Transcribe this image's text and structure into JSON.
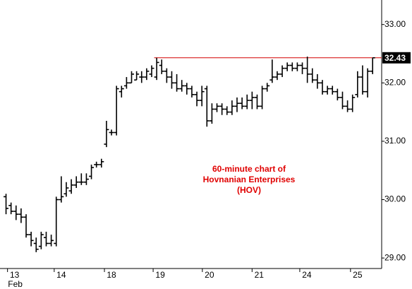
{
  "chart_data": {
    "type": "ohlc",
    "color": "#000000",
    "x": [
      0,
      1,
      2,
      3,
      4,
      5,
      6,
      7,
      8,
      9,
      10,
      11,
      12,
      13,
      14,
      15,
      16,
      17,
      18,
      19,
      20,
      21,
      22,
      23,
      24,
      25,
      26,
      27,
      28,
      29,
      30,
      31,
      32,
      33,
      34,
      35,
      36,
      37,
      38,
      39,
      40,
      41,
      42,
      43,
      44,
      45,
      46,
      47,
      48,
      49,
      50,
      51,
      52,
      53,
      54,
      55,
      56,
      57,
      58,
      59,
      60,
      61,
      62,
      63,
      64,
      65,
      66,
      67,
      68,
      69,
      70,
      71,
      72,
      73
    ],
    "open": [
      30.05,
      29.9,
      29.8,
      29.75,
      29.7,
      29.4,
      29.25,
      29.2,
      29.35,
      29.25,
      29.25,
      30.0,
      30.1,
      30.15,
      30.25,
      30.3,
      30.3,
      30.4,
      30.6,
      30.6,
      30.95,
      31.15,
      31.15,
      31.85,
      31.95,
      32.0,
      32.05,
      32.1,
      32.1,
      32.15,
      32.1,
      32.3,
      32.2,
      32.1,
      32.0,
      31.9,
      31.95,
      31.9,
      31.8,
      31.7,
      31.9,
      31.35,
      31.55,
      31.6,
      31.55,
      31.5,
      31.6,
      31.65,
      31.6,
      31.7,
      31.75,
      31.6,
      31.9,
      32.05,
      32.1,
      32.15,
      32.25,
      32.3,
      32.25,
      32.3,
      32.25,
      32.15,
      32.05,
      32.0,
      31.85,
      31.9,
      31.85,
      31.75,
      31.6,
      31.55,
      31.8,
      32.1,
      31.85,
      32.2
    ],
    "high": [
      30.1,
      29.95,
      29.9,
      29.85,
      29.75,
      29.45,
      29.35,
      29.45,
      29.45,
      29.4,
      30.05,
      30.4,
      30.3,
      30.35,
      30.4,
      30.45,
      30.45,
      30.6,
      30.65,
      30.7,
      31.35,
      31.2,
      31.95,
      31.95,
      32.1,
      32.2,
      32.2,
      32.2,
      32.25,
      32.3,
      32.43,
      32.4,
      32.25,
      32.2,
      32.15,
      32.05,
      32.0,
      31.95,
      31.85,
      31.95,
      31.95,
      31.65,
      31.65,
      31.65,
      31.6,
      31.7,
      31.75,
      31.75,
      31.8,
      31.85,
      31.8,
      31.95,
      32.0,
      32.4,
      32.2,
      32.3,
      32.35,
      32.35,
      32.35,
      32.35,
      32.45,
      32.25,
      32.15,
      32.05,
      31.95,
      31.95,
      31.9,
      31.85,
      31.7,
      31.8,
      32.2,
      32.3,
      32.25,
      32.43
    ],
    "low": [
      29.75,
      29.75,
      29.65,
      29.6,
      29.35,
      29.2,
      29.1,
      29.15,
      29.2,
      29.2,
      29.2,
      29.95,
      30.05,
      30.1,
      30.2,
      30.25,
      30.25,
      30.35,
      30.55,
      30.55,
      30.9,
      31.1,
      31.1,
      31.75,
      31.9,
      32.0,
      32.05,
      32.0,
      32.05,
      32.1,
      32.05,
      32.15,
      32.0,
      31.9,
      31.85,
      31.85,
      31.8,
      31.75,
      31.6,
      31.6,
      31.25,
      31.3,
      31.5,
      31.45,
      31.45,
      31.45,
      31.5,
      31.55,
      31.55,
      31.55,
      31.55,
      31.55,
      31.85,
      32.0,
      32.05,
      32.1,
      32.2,
      32.2,
      32.2,
      32.15,
      32.0,
      32.0,
      31.9,
      31.8,
      31.8,
      31.8,
      31.7,
      31.55,
      31.5,
      31.5,
      31.75,
      31.8,
      31.75,
      32.15
    ],
    "close": [
      29.85,
      29.8,
      29.75,
      29.7,
      29.4,
      29.3,
      29.15,
      29.4,
      29.25,
      29.3,
      30.0,
      30.05,
      30.2,
      30.25,
      30.3,
      30.3,
      30.35,
      30.55,
      30.6,
      30.65,
      31.2,
      31.15,
      31.9,
      31.9,
      32.0,
      32.15,
      32.15,
      32.1,
      32.2,
      32.25,
      32.35,
      32.2,
      32.1,
      32.0,
      31.9,
      31.95,
      31.9,
      31.8,
      31.7,
      31.85,
      31.35,
      31.55,
      31.6,
      31.55,
      31.5,
      31.6,
      31.65,
      31.6,
      31.7,
      31.75,
      31.6,
      31.9,
      31.95,
      32.1,
      32.15,
      32.25,
      32.3,
      32.25,
      32.3,
      32.25,
      32.15,
      32.05,
      32.0,
      31.85,
      31.9,
      31.85,
      31.75,
      31.6,
      31.55,
      31.75,
      32.1,
      31.85,
      32.2,
      32.43
    ],
    "xlim": [
      -1.2,
      74.8
    ],
    "xticks": [
      {
        "value": 1.7,
        "label": "13"
      },
      {
        "value": 11,
        "label": "14"
      },
      {
        "value": 21,
        "label": "18"
      },
      {
        "value": 30.7,
        "label": "19"
      },
      {
        "value": 40.5,
        "label": "20"
      },
      {
        "value": 50.4,
        "label": "21"
      },
      {
        "value": 59.9,
        "label": "24"
      },
      {
        "value": 70,
        "label": "25"
      }
    ],
    "x_sublabel": "Feb",
    "ylim": [
      28.82,
      33.42
    ],
    "yticks": [
      {
        "value": 29,
        "label": "29.00"
      },
      {
        "value": 30,
        "label": "30.00"
      },
      {
        "value": 31,
        "label": "31.00"
      },
      {
        "value": 32,
        "label": "32.00"
      },
      {
        "value": 33,
        "label": "33.00"
      }
    ],
    "reference_line": {
      "value": 32.43,
      "start_x": 29.5,
      "color": "#d40000"
    },
    "annotation": [
      "60-minute chart of",
      "Hovnanian Enterprises",
      "(HOV)"
    ],
    "annotation_color": "#e00000"
  }
}
